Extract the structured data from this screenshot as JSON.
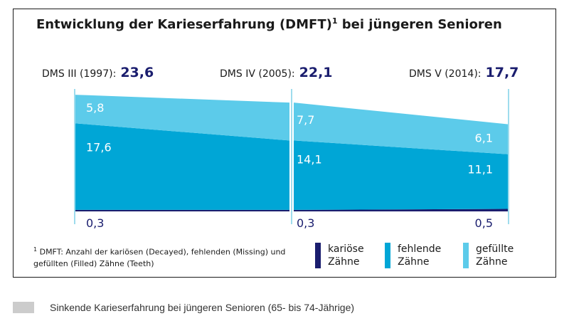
{
  "title": "Entwicklung der Karieserfahrung (DMFT)",
  "title_sup": "1",
  "title_rest": " bei jüngeren Senioren",
  "chart_data": {
    "type": "area",
    "stacked": true,
    "surveys": [
      {
        "label": "DMS III (1997):",
        "total": "23,6"
      },
      {
        "label": "DMS IV (2005):",
        "total": "22,1"
      },
      {
        "label": "DMS V (2014):",
        "total": "17,7"
      }
    ],
    "x": [
      "1997",
      "2005",
      "2014"
    ],
    "series": [
      {
        "name": "kariöse Zähne",
        "values": [
          0.3,
          0.3,
          0.5
        ],
        "labels": [
          "0,3",
          "0,3",
          "0,5"
        ],
        "color": "#1a1d6e"
      },
      {
        "name": "fehlende Zähne",
        "values": [
          17.6,
          14.1,
          11.1
        ],
        "labels": [
          "17,6",
          "14,1",
          "11,1"
        ],
        "color": "#00a6d6"
      },
      {
        "name": "gefüllte Zähne",
        "values": [
          5.8,
          7.7,
          6.1
        ],
        "labels": [
          "5,8",
          "7,7",
          "6,1"
        ],
        "color": "#5ccbea"
      }
    ],
    "ylim": [
      0,
      24
    ]
  },
  "footnote_sup": "1",
  "footnote": "DMFT: Anzahl der kariösen (Decayed), fehlenden (Missing) und gefüllten (Filled) Zähne (Teeth)",
  "legend": [
    {
      "line1": "kariöse",
      "line2": "Zähne",
      "color": "#1a1d6e"
    },
    {
      "line1": "fehlende",
      "line2": "Zähne",
      "color": "#00a6d6"
    },
    {
      "line1": "gefüllte",
      "line2": "Zähne",
      "color": "#5ccbea"
    }
  ],
  "caption": "Sinkende Karieserfahrung bei jüngeren Senioren (65- bis 74-Jährige)"
}
